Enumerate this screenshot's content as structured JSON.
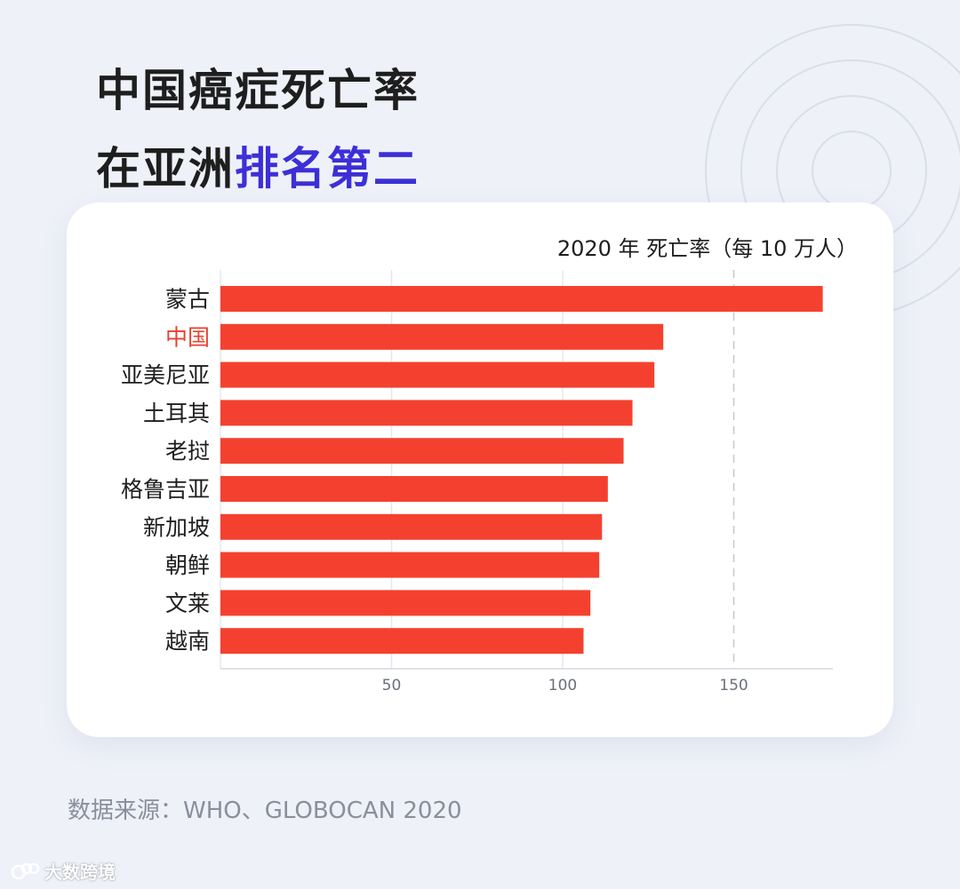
{
  "title": {
    "line1": "中国癌症死亡率",
    "line2_prefix": "在亚洲",
    "line2_highlight": "排名第二"
  },
  "colors": {
    "bar": "#f4412f",
    "highlight_label": "#e8412f",
    "title_highlight": "#3d2fd6"
  },
  "chart_data": {
    "type": "bar",
    "orientation": "horizontal",
    "title": "2020 年 死亡率（每 10 万人）",
    "categories": [
      "蒙古",
      "中国",
      "亚美尼亚",
      "土耳其",
      "老挝",
      "格鲁吉亚",
      "新加坡",
      "朝鲜",
      "文莱",
      "越南"
    ],
    "values": [
      176.0,
      129.4,
      126.8,
      120.4,
      117.8,
      113.2,
      111.5,
      110.7,
      108.1,
      106.1
    ],
    "highlight_category": "中国",
    "xlim": [
      0,
      180
    ],
    "xticks": [
      50,
      100,
      150
    ],
    "xtick_labels": [
      "50",
      "100",
      "150"
    ],
    "grid": true,
    "legend": "none"
  },
  "source": "数据来源：WHO、GLOBOCAN 2020",
  "brand": {
    "name": "大数跨境",
    "logo_icon": "brand-logo-icon"
  }
}
